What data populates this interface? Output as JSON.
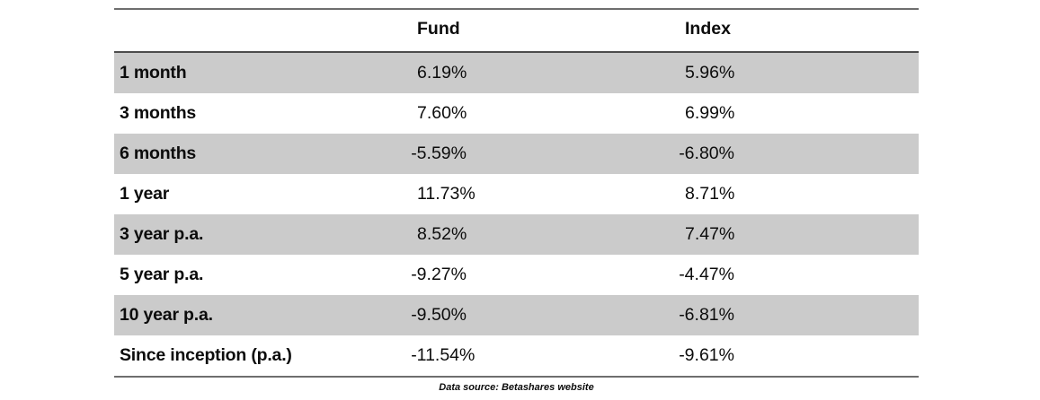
{
  "table": {
    "columns": {
      "corner": "",
      "fund": "Fund",
      "index": "Index"
    },
    "rows": [
      {
        "label": "1 month",
        "fund": "6.19%",
        "index": "5.96%"
      },
      {
        "label": "3 months",
        "fund": "7.60%",
        "index": "6.99%"
      },
      {
        "label": "6 months",
        "fund": "-5.59%",
        "index": "-6.80%"
      },
      {
        "label": "1 year",
        "fund": "11.73%",
        "index": "8.71%"
      },
      {
        "label": "3 year p.a.",
        "fund": "8.52%",
        "index": "7.47%"
      },
      {
        "label": "5 year p.a.",
        "fund": "-9.27%",
        "index": "-4.47%"
      },
      {
        "label": "10 year p.a.",
        "fund": "-9.50%",
        "index": "-6.81%"
      },
      {
        "label": "Since inception (p.a.)",
        "fund": "-11.54%",
        "index": "-9.61%"
      }
    ],
    "source": "Data source: Betashares website"
  },
  "colors": {
    "row_alt_background": "#cbcbcb",
    "rule_top_bottom": "#6e6e6e",
    "rule_header": "#4c4c4c",
    "text": "#0c0c0c"
  },
  "chart_data": {
    "type": "table",
    "columns": [
      "",
      "Fund",
      "Index"
    ],
    "categories": [
      "1 month",
      "3 months",
      "6 months",
      "1 year",
      "3 year p.a.",
      "5 year p.a.",
      "10 year p.a.",
      "Since inception (p.a.)"
    ],
    "series": [
      {
        "name": "Fund",
        "values": [
          6.19,
          7.6,
          -5.59,
          11.73,
          8.52,
          -9.27,
          -9.5,
          -11.54
        ]
      },
      {
        "name": "Index",
        "values": [
          5.96,
          6.99,
          -6.8,
          8.71,
          7.47,
          -4.47,
          -6.81,
          -9.61
        ]
      }
    ],
    "unit": "%",
    "source": "Data source: Betashares website",
    "layout_hints": {
      "alternating_row_shading": true,
      "first_data_row_shaded": true,
      "legend_position": "none",
      "grid": "horizontal-rules-only"
    }
  }
}
